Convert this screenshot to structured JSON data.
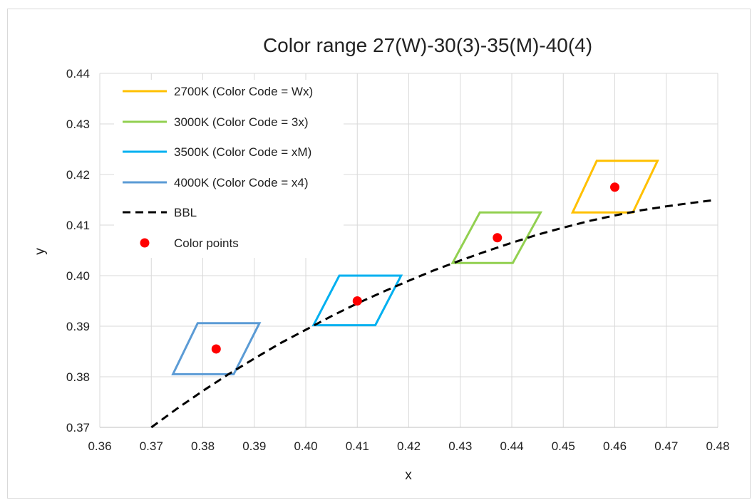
{
  "chart_data": {
    "type": "scatter",
    "title": "Color range 27(W)-30(3)-35(M)-40(4)",
    "xlabel": "x",
    "ylabel": "y",
    "xlim": [
      0.36,
      0.48
    ],
    "ylim": [
      0.37,
      0.44
    ],
    "x_ticks": [
      "0.36",
      "0.37",
      "0.38",
      "0.39",
      "0.40",
      "0.41",
      "0.42",
      "0.43",
      "0.44",
      "0.45",
      "0.46",
      "0.47",
      "0.48"
    ],
    "y_ticks": [
      "0.37",
      "0.38",
      "0.39",
      "0.40",
      "0.41",
      "0.42",
      "0.43",
      "0.44"
    ],
    "grid": true,
    "legend_position": "top-left",
    "series": [
      {
        "name": "2700K (Color Code = Wx)",
        "kind": "polygon",
        "color": "#FFC000",
        "points": [
          [
            0.4518,
            0.4125
          ],
          [
            0.4635,
            0.4125
          ],
          [
            0.4683,
            0.4227
          ],
          [
            0.4565,
            0.4227
          ]
        ]
      },
      {
        "name": "3000K (Color Code = 3x)",
        "kind": "polygon",
        "color": "#92D050",
        "points": [
          [
            0.4285,
            0.4025
          ],
          [
            0.4402,
            0.4025
          ],
          [
            0.4456,
            0.4125
          ],
          [
            0.4338,
            0.4125
          ]
        ]
      },
      {
        "name": "3500K (Color Code = xM)",
        "kind": "polygon",
        "color": "#00B0F0",
        "points": [
          [
            0.4015,
            0.3902
          ],
          [
            0.4135,
            0.3902
          ],
          [
            0.4185,
            0.4
          ],
          [
            0.4065,
            0.4
          ]
        ]
      },
      {
        "name": "4000K (Color Code = x4)",
        "kind": "polygon",
        "color": "#5B9BD5",
        "points": [
          [
            0.3742,
            0.3805
          ],
          [
            0.386,
            0.3805
          ],
          [
            0.391,
            0.3906
          ],
          [
            0.379,
            0.3906
          ]
        ]
      },
      {
        "name": "BBL",
        "kind": "dashed-line",
        "color": "#000000",
        "points": [
          [
            0.37,
            0.37
          ],
          [
            0.375,
            0.3737
          ],
          [
            0.38,
            0.3772
          ],
          [
            0.385,
            0.3805
          ],
          [
            0.39,
            0.3836
          ],
          [
            0.395,
            0.3866
          ],
          [
            0.4,
            0.3893
          ],
          [
            0.405,
            0.392
          ],
          [
            0.41,
            0.3945
          ],
          [
            0.415,
            0.3968
          ],
          [
            0.42,
            0.399
          ],
          [
            0.425,
            0.4011
          ],
          [
            0.43,
            0.403
          ],
          [
            0.435,
            0.4048
          ],
          [
            0.44,
            0.4065
          ],
          [
            0.445,
            0.4081
          ],
          [
            0.45,
            0.4095
          ],
          [
            0.455,
            0.4108
          ],
          [
            0.46,
            0.4119
          ],
          [
            0.465,
            0.4129
          ],
          [
            0.47,
            0.4137
          ],
          [
            0.475,
            0.4144
          ],
          [
            0.479,
            0.4149
          ]
        ]
      },
      {
        "name": "Color points",
        "kind": "points",
        "color": "#FF0000",
        "points": [
          [
            0.3826,
            0.3855
          ],
          [
            0.41,
            0.395
          ],
          [
            0.4372,
            0.4075
          ],
          [
            0.46,
            0.4175
          ]
        ]
      }
    ]
  }
}
